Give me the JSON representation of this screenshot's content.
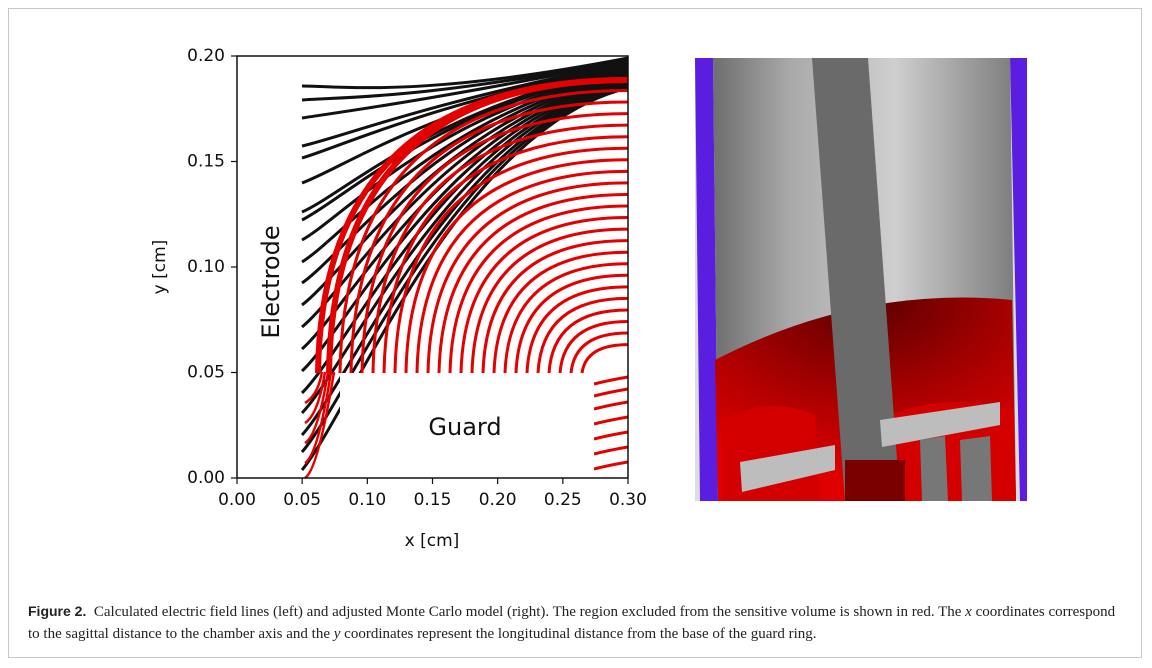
{
  "chart_data": {
    "type": "line",
    "xlabel": "x [cm]",
    "ylabel": "y [cm]",
    "xlim": [
      0,
      0.3
    ],
    "ylim": [
      0,
      0.2
    ],
    "xticks": [
      {
        "value": 0,
        "label": "0.00"
      },
      0.05,
      {
        "value": 0.1,
        "label": "0.10"
      },
      0.15,
      {
        "value": 0.2,
        "label": "0.20"
      },
      0.25,
      {
        "value": 0.3,
        "label": "0.30"
      }
    ],
    "yticks": [
      {
        "value": 0,
        "label": "0.00"
      },
      0.05,
      {
        "value": 0.1,
        "label": "0.10"
      },
      0.15,
      {
        "value": 0.2,
        "label": "0.20"
      }
    ],
    "annotations": [
      "Electrode",
      "Guard"
    ]
  },
  "caption": {
    "label": "Figure 2.",
    "parts": [
      "Calculated electric field lines (left) and adjusted Monte Carlo model (right). The region excluded from the sensitive volume is shown in red. The ",
      "x",
      " coordinates correspond to the sagittal distance to the chamber axis and the ",
      "y",
      " coordinates represent the longitudinal distance from the base of the guard ring."
    ]
  }
}
